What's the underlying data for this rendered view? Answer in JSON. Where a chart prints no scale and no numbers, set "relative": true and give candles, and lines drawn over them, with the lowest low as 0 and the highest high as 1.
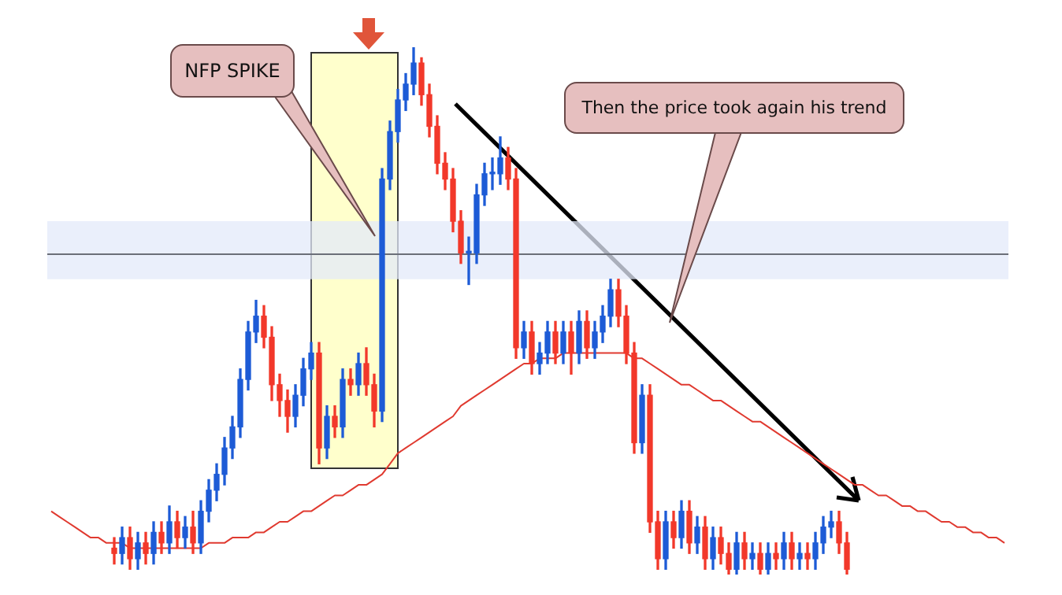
{
  "chart_data": {
    "type": "candlestick",
    "relative": true,
    "categories": [
      null,
      null,
      null,
      null,
      null,
      null,
      null,
      null,
      null,
      null,
      null,
      null,
      null,
      null,
      null,
      null,
      null,
      null,
      null,
      null,
      null,
      null,
      null,
      null,
      null,
      null,
      null,
      null,
      null,
      null,
      null,
      null,
      null,
      null,
      null,
      null,
      null,
      null,
      null,
      null,
      null,
      null,
      null,
      null,
      null,
      null,
      null,
      null,
      null,
      null,
      null,
      null,
      null,
      null,
      null,
      null,
      null,
      null,
      null,
      null,
      null,
      null,
      null,
      null,
      null,
      null,
      null,
      null,
      null,
      null,
      null,
      null,
      null,
      null,
      null,
      null,
      null,
      null,
      null,
      null,
      null,
      null,
      null,
      null,
      null,
      null,
      null,
      null,
      null,
      null,
      null,
      null,
      null,
      null,
      null,
      null,
      null,
      null,
      null,
      null,
      null,
      null,
      null,
      null,
      null,
      null,
      null,
      null,
      null,
      null,
      null,
      null,
      null,
      null,
      null,
      null,
      null,
      null,
      null,
      null,
      null,
      null
    ],
    "ohlc": [
      null,
      null,
      null,
      null,
      null,
      null,
      null,
      null,
      [
        0.05,
        0.07,
        0.02,
        0.04
      ],
      [
        0.04,
        0.09,
        0.02,
        0.07
      ],
      [
        0.07,
        0.09,
        0.01,
        0.03
      ],
      [
        0.03,
        0.08,
        0.01,
        0.06
      ],
      [
        0.06,
        0.08,
        0.02,
        0.04
      ],
      [
        0.04,
        0.1,
        0.02,
        0.08
      ],
      [
        0.08,
        0.1,
        0.04,
        0.06
      ],
      [
        0.06,
        0.13,
        0.04,
        0.1
      ],
      [
        0.1,
        0.12,
        0.05,
        0.07
      ],
      [
        0.07,
        0.11,
        0.05,
        0.09
      ],
      [
        0.09,
        0.12,
        0.04,
        0.06
      ],
      [
        0.06,
        0.14,
        0.04,
        0.12
      ],
      [
        0.12,
        0.18,
        0.1,
        0.16
      ],
      [
        0.16,
        0.21,
        0.14,
        0.19
      ],
      [
        0.19,
        0.26,
        0.17,
        0.24
      ],
      [
        0.24,
        0.3,
        0.22,
        0.28
      ],
      [
        0.28,
        0.39,
        0.26,
        0.37
      ],
      [
        0.37,
        0.48,
        0.35,
        0.46
      ],
      [
        0.46,
        0.52,
        0.44,
        0.49
      ],
      [
        0.49,
        0.51,
        0.43,
        0.45
      ],
      [
        0.45,
        0.47,
        0.33,
        0.36
      ],
      [
        0.36,
        0.38,
        0.3,
        0.33
      ],
      [
        0.33,
        0.35,
        0.27,
        0.3
      ],
      [
        0.3,
        0.36,
        0.28,
        0.34
      ],
      [
        0.34,
        0.41,
        0.32,
        0.39
      ],
      [
        0.39,
        0.44,
        0.37,
        0.42
      ],
      [
        0.42,
        0.44,
        0.21,
        0.24
      ],
      [
        0.24,
        0.32,
        0.22,
        0.3
      ],
      [
        0.3,
        0.32,
        0.26,
        0.28
      ],
      [
        0.28,
        0.39,
        0.26,
        0.37
      ],
      [
        0.37,
        0.39,
        0.34,
        0.36
      ],
      [
        0.36,
        0.42,
        0.34,
        0.4
      ],
      [
        0.4,
        0.43,
        0.34,
        0.36
      ],
      [
        0.36,
        0.38,
        0.28,
        0.31
      ],
      [
        0.31,
        0.77,
        0.29,
        0.75
      ],
      [
        0.75,
        0.86,
        0.73,
        0.84
      ],
      [
        0.84,
        0.92,
        0.82,
        0.9
      ],
      [
        0.9,
        0.95,
        0.88,
        0.93
      ],
      [
        0.93,
        1,
        0.91,
        0.97
      ],
      [
        0.97,
        0.98,
        0.89,
        0.91
      ],
      [
        0.91,
        0.93,
        0.83,
        0.85
      ],
      [
        0.85,
        0.87,
        0.76,
        0.78
      ],
      [
        0.78,
        0.8,
        0.73,
        0.75
      ],
      [
        0.75,
        0.77,
        0.65,
        0.67
      ],
      [
        0.67,
        0.69,
        0.59,
        0.61
      ],
      [
        0.61,
        0.64,
        0.55,
        0.61
      ],
      [
        0.61,
        0.74,
        0.59,
        0.72
      ],
      [
        0.72,
        0.78,
        0.7,
        0.76
      ],
      [
        0.76,
        0.79,
        0.73,
        0.76
      ],
      [
        0.76,
        0.83,
        0.74,
        0.79
      ],
      [
        0.79,
        0.81,
        0.73,
        0.75
      ],
      [
        0.75,
        0.77,
        0.41,
        0.43
      ],
      [
        0.43,
        0.48,
        0.41,
        0.46
      ],
      [
        0.46,
        0.48,
        0.38,
        0.4
      ],
      [
        0.4,
        0.44,
        0.38,
        0.42
      ],
      [
        0.42,
        0.48,
        0.4,
        0.46
      ],
      [
        0.46,
        0.48,
        0.4,
        0.42
      ],
      [
        0.42,
        0.48,
        0.4,
        0.46
      ],
      [
        0.46,
        0.48,
        0.38,
        0.42
      ],
      [
        0.42,
        0.5,
        0.4,
        0.48
      ],
      [
        0.48,
        0.5,
        0.41,
        0.43
      ],
      [
        0.43,
        0.48,
        0.41,
        0.46
      ],
      [
        0.46,
        0.51,
        0.44,
        0.49
      ],
      [
        0.49,
        0.56,
        0.47,
        0.54
      ],
      [
        0.54,
        0.56,
        0.47,
        0.49
      ],
      [
        0.49,
        0.51,
        0.4,
        0.42
      ],
      [
        0.42,
        0.44,
        0.23,
        0.25
      ],
      [
        0.25,
        0.36,
        0.23,
        0.34
      ],
      [
        0.34,
        0.36,
        0.08,
        0.1
      ],
      [
        0.1,
        0.12,
        0.01,
        0.03
      ],
      [
        0.03,
        0.12,
        0.01,
        0.1
      ],
      [
        0.1,
        0.12,
        0.05,
        0.07
      ],
      [
        0.07,
        0.14,
        0.05,
        0.12
      ],
      [
        0.12,
        0.14,
        0.04,
        0.06
      ],
      [
        0.06,
        0.11,
        0.04,
        0.09
      ],
      [
        0.09,
        0.11,
        0.01,
        0.03
      ],
      [
        0.03,
        0.09,
        0.01,
        0.07
      ],
      [
        0.07,
        0.09,
        0.02,
        0.04
      ],
      [
        0.04,
        0.06,
        0,
        0.01
      ],
      [
        0.01,
        0.08,
        0,
        0.06
      ],
      [
        0.06,
        0.08,
        0.01,
        0.03
      ],
      [
        0.03,
        0.06,
        0.01,
        0.04
      ],
      [
        0.04,
        0.06,
        0,
        0.01
      ],
      [
        0.01,
        0.06,
        0,
        0.04
      ],
      [
        0.04,
        0.06,
        0.01,
        0.03
      ],
      [
        0.03,
        0.08,
        0.01,
        0.06
      ],
      [
        0.06,
        0.08,
        0.01,
        0.03
      ],
      [
        0.03,
        0.06,
        0.01,
        0.04
      ],
      [
        0.04,
        0.06,
        0.01,
        0.03
      ],
      [
        0.03,
        0.08,
        0.01,
        0.06
      ],
      [
        0.06,
        0.11,
        0.04,
        0.09
      ],
      [
        0.09,
        0.12,
        0.07,
        0.1
      ],
      [
        0.1,
        0.12,
        0.04,
        0.06
      ],
      [
        0.06,
        0.08,
        0,
        0.01
      ],
      null,
      null,
      null,
      null,
      null,
      null,
      null,
      null,
      null,
      null,
      null,
      null,
      null,
      null,
      null,
      null,
      null,
      null,
      null,
      null
    ],
    "series": [
      {
        "type": "line",
        "color": "#e03a30",
        "values": [
          0.12,
          0.11,
          0.1,
          0.09,
          0.08,
          0.07,
          0.07,
          0.06,
          0.06,
          0.06,
          0.05,
          0.05,
          0.05,
          0.05,
          0.05,
          0.05,
          0.05,
          0.05,
          0.05,
          0.05,
          0.06,
          0.06,
          0.06,
          0.07,
          0.07,
          0.07,
          0.08,
          0.08,
          0.09,
          0.1,
          0.1,
          0.11,
          0.12,
          0.12,
          0.13,
          0.14,
          0.15,
          0.15,
          0.16,
          0.17,
          0.17,
          0.18,
          0.19,
          0.21,
          0.23,
          0.24,
          0.25,
          0.26,
          0.27,
          0.28,
          0.29,
          0.3,
          0.32,
          0.33,
          0.34,
          0.35,
          0.36,
          0.37,
          0.38,
          0.39,
          0.4,
          0.4,
          0.41,
          0.41,
          0.41,
          0.42,
          0.42,
          0.42,
          0.42,
          0.42,
          0.42,
          0.42,
          0.42,
          0.42,
          0.41,
          0.41,
          0.4,
          0.39,
          0.38,
          0.37,
          0.36,
          0.36,
          0.35,
          0.34,
          0.33,
          0.33,
          0.32,
          0.31,
          0.3,
          0.29,
          0.29,
          0.28,
          0.27,
          0.26,
          0.25,
          0.24,
          0.23,
          0.22,
          0.21,
          0.2,
          0.19,
          0.18,
          0.17,
          0.17,
          0.16,
          0.15,
          0.15,
          0.14,
          0.13,
          0.13,
          0.12,
          0.12,
          0.11,
          0.1,
          0.1,
          0.09,
          0.09,
          0.08,
          0.08,
          0.07,
          0.07,
          0.06
        ]
      }
    ],
    "ref_lines": [
      {
        "axis": "y",
        "value": 0.61,
        "color": "#6b6f78"
      }
    ],
    "bands": [
      {
        "axis": "y",
        "from": 0.56,
        "to": 0.67,
        "color": "#e3eaf9"
      }
    ],
    "annotations": [
      "NFP SPIKE",
      "Then the price took again his trend"
    ]
  }
}
